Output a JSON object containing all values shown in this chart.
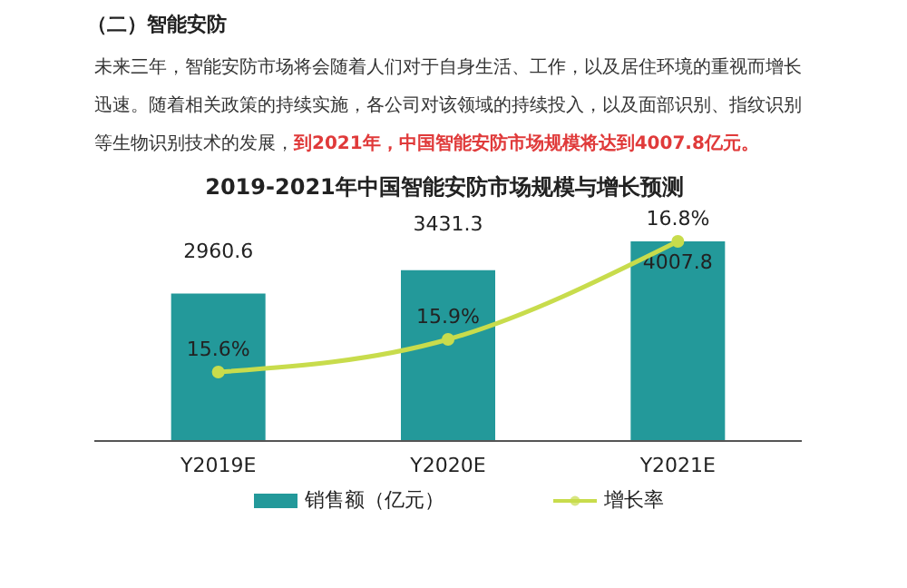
{
  "chart_data": {
    "type": "bar",
    "title": "2019-2021年中国智能安防市场规模与增长预测",
    "annotations": [
      "（二）智能安防",
      "未来三年，智能安防市场将会随着人们对于自身生活、工作，以及居住环境的重视而增长",
      "迅速。随着相关政策的持续实施，各公司对该领域的持续投入，以及面部识别、指纹识别",
      "等生物识别技术的发展，",
      "到2021年，中国智能安防市场规模将达到4007.8亿元。"
    ],
    "categories": [
      "Y2019E",
      "Y2020E",
      "Y2021E"
    ],
    "series": [
      {
        "name": "销售额（亿元）",
        "color": "#23999a",
        "values": [
          2960.6,
          3431.3,
          4007.8
        ]
      },
      {
        "name": "增长率",
        "type": "line",
        "axis": "y2",
        "color": "#c8dc4c",
        "values": [
          15.6,
          15.9,
          16.8
        ],
        "value_labels": [
          "15.6%",
          "15.9%",
          "16.8%"
        ]
      }
    ],
    "tick_labels": "x",
    "data_labels": true,
    "legend": "bottom",
    "marker": "circle",
    "line_style": "solid"
  }
}
